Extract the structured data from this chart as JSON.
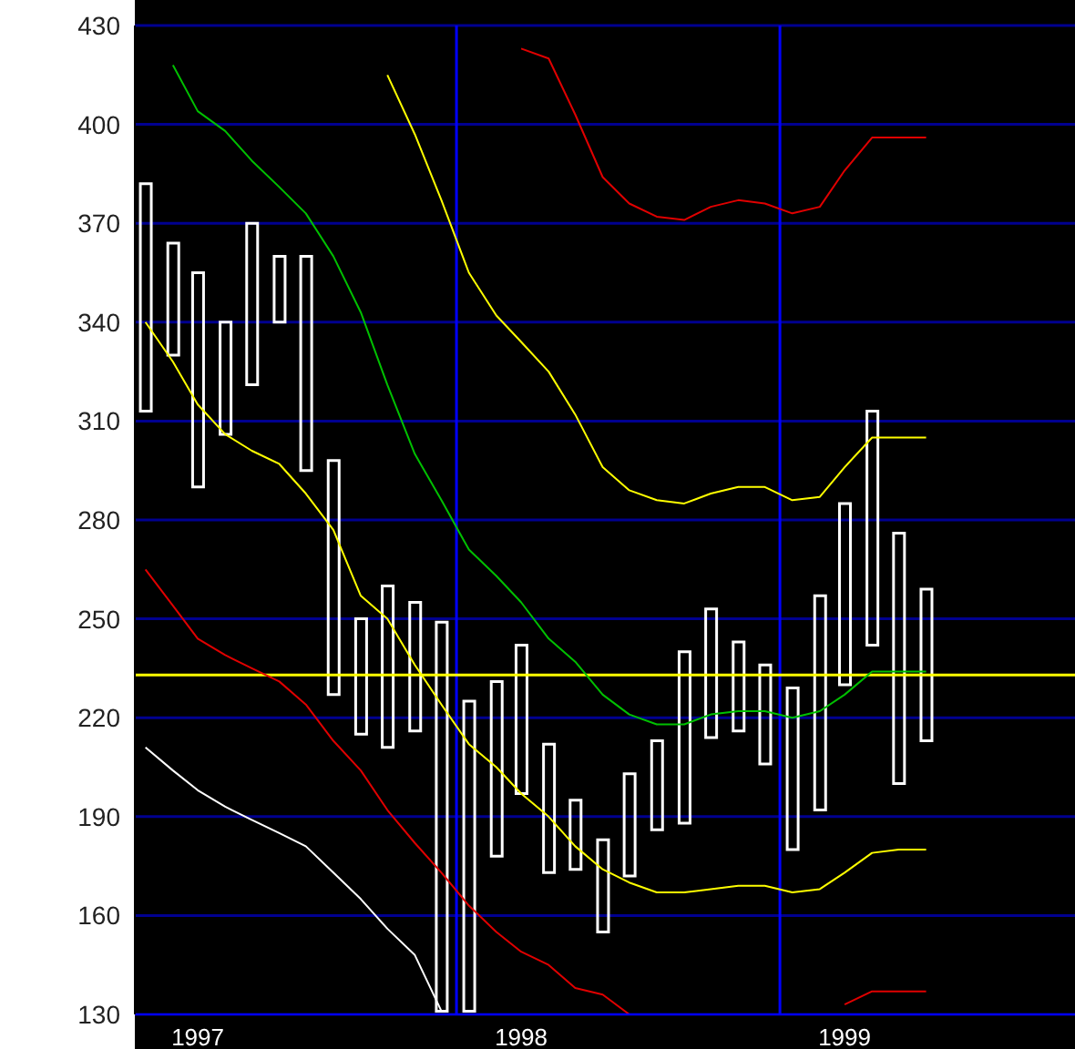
{
  "chart_data": {
    "type": "line",
    "x": [
      "1997-01-15",
      "1997-02-15",
      "1997-03-15",
      "1997-04-15",
      "1997-05-15",
      "1997-06-15",
      "1997-07-15",
      "1997-08-15",
      "1997-09-15",
      "1997-10-15",
      "1997-11-15",
      "1997-12-15",
      "1998-01-15",
      "1998-02-15",
      "1998-03-15",
      "1998-04-15",
      "1998-05-15",
      "1998-06-15",
      "1998-07-15",
      "1998-08-15",
      "1998-09-15",
      "1998-10-15",
      "1998-11-15",
      "1998-12-15",
      "1999-01-15",
      "1999-02-15",
      "1999-03-15",
      "1999-04-15",
      "1999-05-15",
      "1999-06-15"
    ],
    "series": [
      {
        "type": "bar",
        "color": "#ffffff",
        "base": [
          313,
          330,
          290,
          306,
          321,
          340,
          295,
          227,
          215,
          211,
          216,
          131,
          131,
          178,
          197,
          173,
          174,
          155,
          172,
          186,
          188,
          214,
          216,
          206,
          180,
          192,
          230,
          242,
          200,
          213
        ],
        "values": [
          69,
          34,
          65,
          34,
          49,
          20,
          65,
          71,
          35,
          49,
          39,
          118,
          94,
          53,
          45,
          39,
          21,
          28,
          31,
          27,
          52,
          39,
          27,
          30,
          49,
          65,
          55,
          71,
          76,
          46
        ]
      },
      {
        "color": "#00c000",
        "values": [
          null,
          418,
          404,
          398,
          389,
          381,
          373,
          360,
          343,
          321,
          300,
          286,
          271,
          263,
          255,
          244,
          237,
          227,
          221,
          218,
          218,
          221,
          222,
          222,
          220,
          222,
          227,
          234,
          234,
          234
        ]
      },
      {
        "color": "#ffff00",
        "values": [
          null,
          null,
          null,
          null,
          null,
          null,
          null,
          null,
          null,
          415,
          397,
          377,
          355,
          342,
          334,
          325,
          312,
          296,
          289,
          286,
          285,
          288,
          290,
          290,
          286,
          287,
          296,
          305,
          305,
          305
        ]
      },
      {
        "color": "#ffff00",
        "values": [
          340,
          328,
          315,
          306,
          301,
          297,
          288,
          277,
          257,
          250,
          236,
          224,
          212,
          205,
          197,
          190,
          181,
          174,
          170,
          167,
          167,
          168,
          169,
          169,
          167,
          168,
          173,
          179,
          180,
          180
        ]
      },
      {
        "color": "#e00000",
        "values": [
          null,
          null,
          null,
          null,
          null,
          null,
          null,
          null,
          null,
          null,
          null,
          null,
          null,
          null,
          423,
          420,
          403,
          384,
          376,
          372,
          371,
          375,
          377,
          376,
          373,
          375,
          386,
          396,
          396,
          396
        ]
      },
      {
        "color": "#e00000",
        "values": [
          265,
          254,
          244,
          239,
          235,
          231,
          224,
          213,
          204,
          192,
          182,
          173,
          163,
          155,
          149,
          145,
          138,
          136,
          130,
          null,
          null,
          null,
          null,
          null,
          null,
          null,
          133,
          137,
          137,
          137
        ]
      },
      {
        "color": "#ffffff",
        "values": [
          211,
          204,
          198,
          193,
          189,
          185,
          181,
          173,
          165,
          156,
          148,
          131,
          null,
          null,
          null,
          null,
          null,
          null,
          null,
          null,
          null,
          null,
          null,
          null,
          null,
          null,
          null,
          null,
          null,
          null
        ]
      }
    ],
    "xlim": [
      "1997-01-03",
      "1999-11-30"
    ],
    "xticks": [
      {
        "value": "1997-03-15",
        "label": "1997"
      },
      {
        "value": "1998-03-15",
        "label": "1998"
      },
      {
        "value": "1999-03-15",
        "label": "1999"
      }
    ],
    "ylim": [
      130,
      430
    ],
    "yticks": [
      130,
      160,
      190,
      220,
      250,
      280,
      310,
      340,
      370,
      400,
      430
    ],
    "grid": "y",
    "ref_lines": [
      {
        "axis": "x",
        "value": "1998-01-01",
        "color": "#0000ff"
      },
      {
        "axis": "x",
        "value": "1999-01-01",
        "color": "#0000ff"
      },
      {
        "axis": "y",
        "value": 233,
        "color": "#ffff00"
      }
    ]
  }
}
